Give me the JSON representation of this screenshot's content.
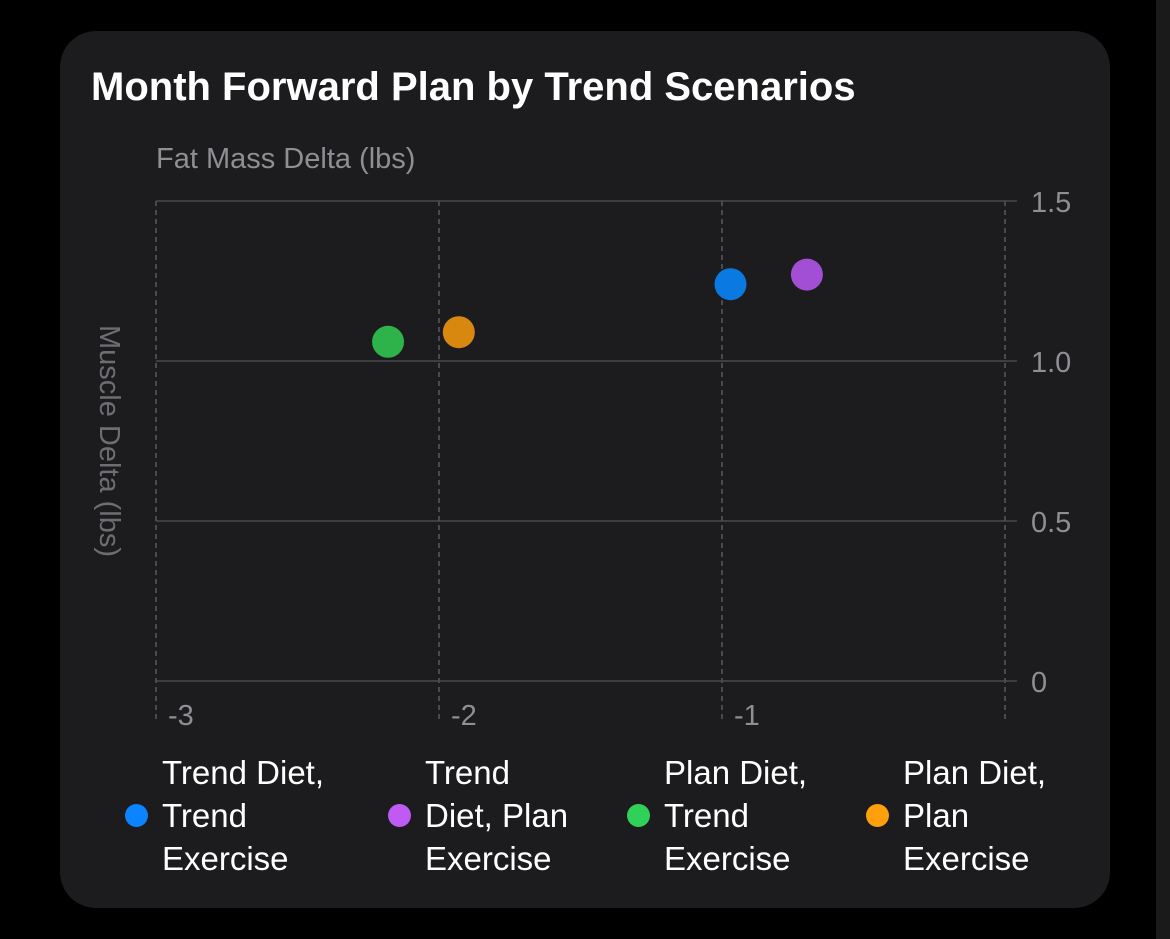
{
  "chart_data": {
    "type": "scatter",
    "title": "Month Forward Plan by Trend Scenarios",
    "xlabel": "Fat Mass Delta (lbs)",
    "ylabel": "Muscle Delta (lbs)",
    "xlim": [
      -3,
      0
    ],
    "ylim": [
      0,
      1.5
    ],
    "x_ticks": [
      -3,
      -2,
      -1
    ],
    "x_tick_labels": [
      "-3",
      "-2",
      "-1"
    ],
    "y_ticks": [
      0,
      0.5,
      1.0,
      1.5
    ],
    "y_tick_labels": [
      "0",
      "0.5",
      "1.0",
      "1.5"
    ],
    "grid": true,
    "legend_position": "bottom",
    "series": [
      {
        "name": "Trend Diet, Trend Exercise",
        "color": "#0a7ae2",
        "points": [
          {
            "x": -0.97,
            "y": 1.24
          }
        ]
      },
      {
        "name": "Trend Diet, Plan Exercise",
        "color": "#a24fd6",
        "points": [
          {
            "x": -0.7,
            "y": 1.27
          }
        ]
      },
      {
        "name": "Plan Diet, Trend Exercise",
        "color": "#2eb24a",
        "points": [
          {
            "x": -2.18,
            "y": 1.06
          }
        ]
      },
      {
        "name": "Plan Diet, Plan Exercise",
        "color": "#d9880f",
        "points": [
          {
            "x": -1.93,
            "y": 1.09
          }
        ]
      }
    ]
  },
  "legend": {
    "items": [
      {
        "label": "Trend Diet,\nTrend\nExercise",
        "color": "#0a84ff"
      },
      {
        "label": "Trend\nDiet, Plan\nExercise",
        "color": "#bf5af2"
      },
      {
        "label": "Plan Diet,\nTrend\nExercise",
        "color": "#30d158"
      },
      {
        "label": "Plan Diet,\nPlan\nExercise",
        "color": "#ff9f0a"
      }
    ]
  }
}
